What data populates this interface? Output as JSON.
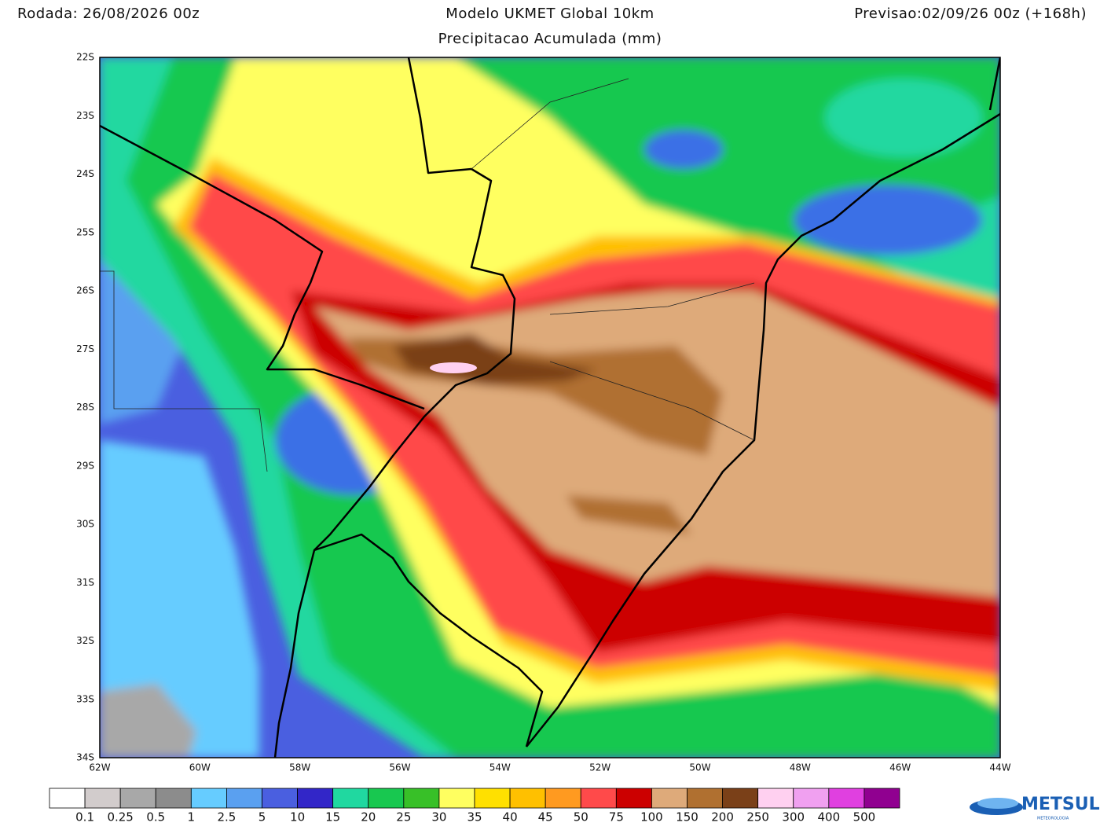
{
  "header": {
    "run": "Rodada: 26/08/2026 00z",
    "model": "Modelo UKMET Global 10km",
    "field": "Precipitacao Acumulada (mm)",
    "forecast": "Previsao:02/09/26 00z (+168h)"
  },
  "axes": {
    "lat_labels": [
      "22S",
      "23S",
      "24S",
      "25S",
      "26S",
      "27S",
      "28S",
      "29S",
      "30S",
      "31S",
      "32S",
      "33S",
      "34S"
    ],
    "lon_labels": [
      "62W",
      "60W",
      "58W",
      "56W",
      "54W",
      "52W",
      "50W",
      "48W",
      "46W",
      "44W"
    ]
  },
  "colorbar": {
    "colors": [
      "#ffffff",
      "#d2cccc",
      "#a8a8a8",
      "#8c8c8c",
      "#66ccff",
      "#5aa0f0",
      "#4a5fe0",
      "#3226c8",
      "#20d8a0",
      "#18c850",
      "#38c028",
      "#ffff60",
      "#ffe000",
      "#ffc000",
      "#ff9a20",
      "#ff4a4a",
      "#cc0000",
      "#deaa7a",
      "#b07030",
      "#7a4018",
      "#ffd0f0",
      "#f0a0f0",
      "#e040e0",
      "#900090"
    ],
    "labels": [
      "0.1",
      "0.25",
      "0.5",
      "1",
      "2.5",
      "5",
      "10",
      "15",
      "20",
      "25",
      "30",
      "35",
      "40",
      "45",
      "50",
      "75",
      "100",
      "150",
      "200",
      "250",
      "300",
      "400",
      "500"
    ]
  },
  "logo": {
    "name": "METSUL",
    "tagline": "METEOROLOGIA"
  }
}
